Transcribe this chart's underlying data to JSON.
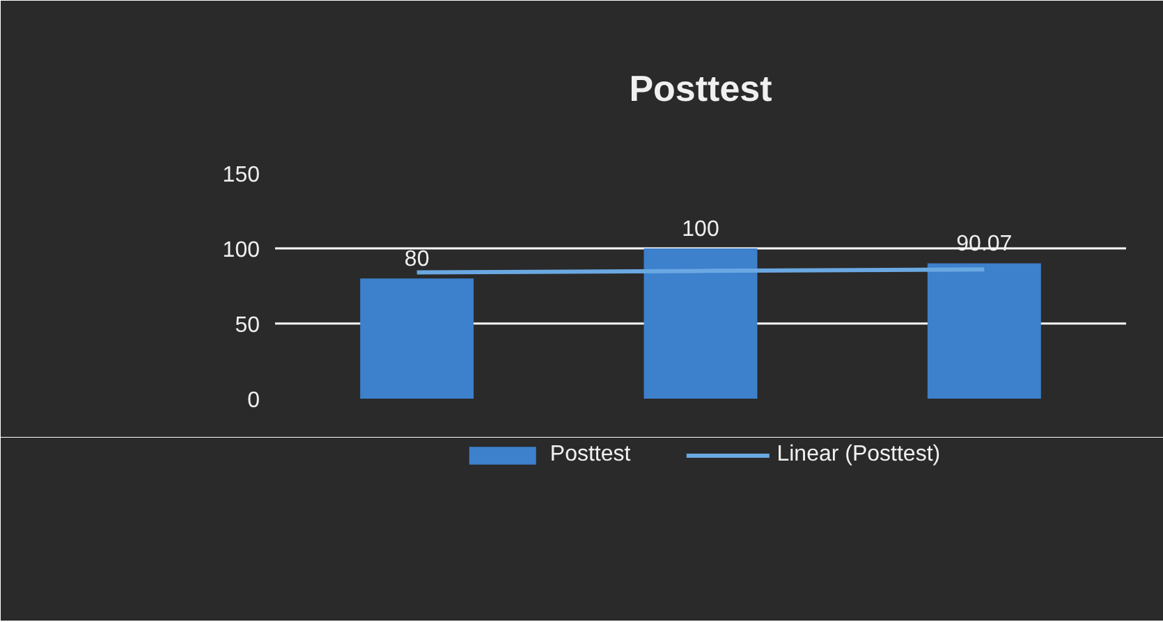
{
  "chart_data": {
    "type": "bar",
    "title": "Posttest",
    "categories": [
      null,
      null,
      null
    ],
    "series": [
      {
        "name": "Posttest",
        "color": "#3d80cc",
        "values": [
          80,
          100,
          90.07
        ],
        "value_labels": [
          "80",
          "100",
          "90.07"
        ]
      },
      {
        "name": "Linear (Posttest)",
        "type": "line",
        "color": "#6aa8e2",
        "values": [
          84,
          85,
          86
        ]
      }
    ],
    "ylim": [
      0,
      150
    ],
    "yticks": [
      0,
      50,
      100,
      150
    ],
    "grid": "y",
    "legend": "bottom"
  }
}
